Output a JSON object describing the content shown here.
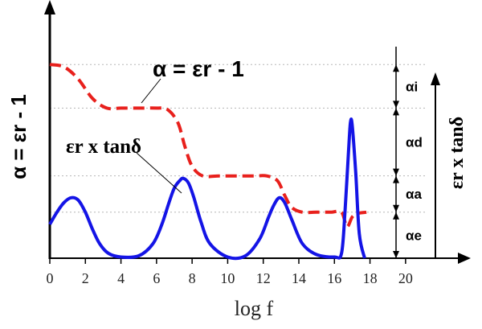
{
  "chart_data": {
    "type": "line",
    "xlabel": "log f",
    "ylabel_left": "α = εr - 1",
    "ylabel_right": "εr x tanδ",
    "xlim": [
      0,
      21
    ],
    "x_ticks": [
      0,
      2,
      4,
      6,
      8,
      10,
      12,
      14,
      16,
      18,
      20
    ],
    "grid": false,
    "annotations": {
      "alpha_curve": "α = εr - 1",
      "loss_curve": "εr x tanδ"
    },
    "segments": [
      {
        "label": "αi",
        "from": 0.8,
        "to": 0.62
      },
      {
        "label": "αd",
        "from": 0.62,
        "to": 0.34
      },
      {
        "label": "αa",
        "from": 0.34,
        "to": 0.19
      },
      {
        "label": "αe",
        "from": 0.19,
        "to": 0.0
      }
    ],
    "series": [
      {
        "style": "dashed",
        "color": "#e8201c",
        "x": [
          0,
          0.8,
          1.6,
          2.4,
          3.2,
          4.0,
          5.0,
          6.0,
          6.6,
          7.2,
          7.6,
          8.0,
          8.6,
          9.5,
          10.5,
          11.5,
          12.2,
          12.8,
          13.2,
          13.6,
          14.2,
          15.0,
          15.8,
          16.4,
          16.7,
          17.0,
          17.3,
          17.8
        ],
        "values": [
          0.8,
          0.79,
          0.74,
          0.66,
          0.62,
          0.62,
          0.62,
          0.62,
          0.615,
          0.56,
          0.46,
          0.38,
          0.34,
          0.34,
          0.34,
          0.34,
          0.34,
          0.32,
          0.26,
          0.21,
          0.19,
          0.19,
          0.19,
          0.19,
          0.13,
          0.17,
          0.185,
          0.19
        ]
      },
      {
        "style": "solid",
        "color": "#1414e6",
        "x": [
          0,
          0.4,
          0.8,
          1.2,
          1.6,
          2.0,
          2.4,
          2.8,
          3.3,
          4.0,
          5.0,
          5.8,
          6.3,
          6.7,
          7.0,
          7.3,
          7.5,
          7.8,
          8.1,
          8.5,
          9.0,
          10.0,
          11.0,
          11.8,
          12.3,
          12.6,
          12.9,
          13.2,
          13.6,
          14.2,
          15.0,
          16.0,
          16.4,
          16.6,
          16.8,
          16.9,
          17.0,
          17.2,
          17.4,
          17.7
        ],
        "values": [
          0.14,
          0.19,
          0.23,
          0.25,
          0.24,
          0.19,
          0.12,
          0.06,
          0.02,
          0.005,
          0.01,
          0.06,
          0.14,
          0.23,
          0.29,
          0.32,
          0.33,
          0.31,
          0.25,
          0.15,
          0.06,
          0.005,
          0.01,
          0.08,
          0.17,
          0.22,
          0.25,
          0.23,
          0.16,
          0.06,
          0.015,
          0.005,
          0.02,
          0.2,
          0.45,
          0.56,
          0.55,
          0.35,
          0.1,
          0.0
        ]
      }
    ]
  }
}
